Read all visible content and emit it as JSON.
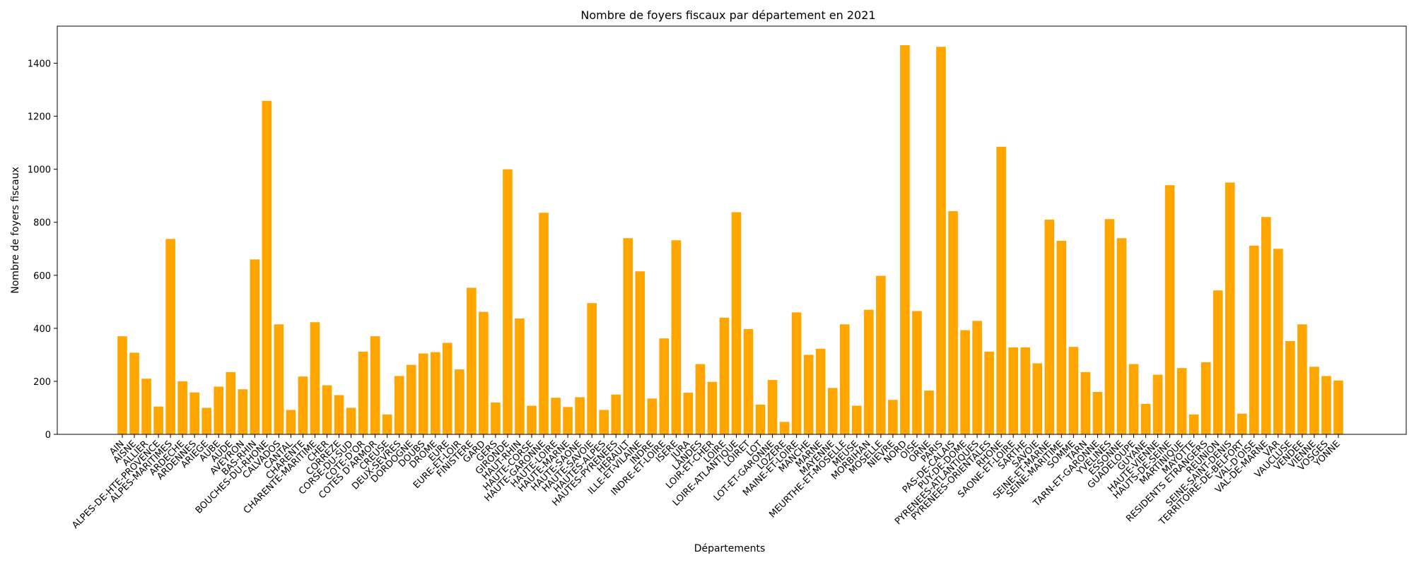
{
  "chart_data": {
    "type": "bar",
    "title": "Nombre de foyers fiscaux par département en 2021",
    "xlabel": "Départements",
    "ylabel": "Nombre de foyers fiscaux",
    "ylim": [
      0,
      1540
    ],
    "yticks": [
      0,
      200,
      400,
      600,
      800,
      1000,
      1200,
      1400
    ],
    "grid": false,
    "bar_color": "#FFA500",
    "categories": [
      "AIN",
      "AISNE",
      "ALLIER",
      "ALPES-DE-HTE-PROVENCE",
      "ALPES-MARITIMES",
      "ARDECHE",
      "ARDENNES",
      "ARIEGE",
      "AUBE",
      "AUDE",
      "AVEYRON",
      "BAS-RHIN",
      "BOUCHES-DU-RHONE",
      "CALVADOS",
      "CANTAL",
      "CHARENTE",
      "CHARENTE-MARITIME",
      "CHER",
      "CORREZE",
      "CORSE-DU-SUD",
      "COTE-D'OR",
      "COTES D'ARMOR",
      "CREUSE",
      "DEUX-SEVRES",
      "DORDOGNE",
      "DOUBS",
      "DROME",
      "EURE",
      "EURE-ET-LOIR",
      "FINISTERE",
      "GARD",
      "GERS",
      "GIRONDE",
      "HAUT-RHIN",
      "HAUTE-CORSE",
      "HAUTE-GARONNE",
      "HAUTE-LOIRE",
      "HAUTE-MARNE",
      "HAUTE-SAONE",
      "HAUTE-SAVOIE",
      "HAUTES-ALPES",
      "HAUTES-PYRENEES",
      "HERAULT",
      "ILLE-ET-VILAINE",
      "INDRE",
      "INDRE-ET-LOIRE",
      "ISERE",
      "JURA",
      "LANDES",
      "LOIR-ET-CHER",
      "LOIRE",
      "LOIRE-ATLANTIQUE",
      "LOIRET",
      "LOT",
      "LOT-ET-GARONNE",
      "LOZERE",
      "MAINE-ET-LOIRE",
      "MANCHE",
      "MARNE",
      "MAYENNE",
      "MEURTHE-ET-MOSELLE",
      "MEUSE",
      "MORBIHAN",
      "MOSELLE",
      "NIEVRE",
      "NORD",
      "OISE",
      "ORNE",
      "PARIS",
      "PAS-DE-CALAIS",
      "PUY-DE-DOME",
      "PYRENEES-ATLANTIQUES",
      "PYRENEES-ORIENTALES",
      "RHONE",
      "SAONE-ET-LOIRE",
      "SARTHE",
      "SAVOIE",
      "SEINE-ET-MARNE",
      "SEINE-MARITIME",
      "SOMME",
      "TARN",
      "TARN-ET-GARONNE",
      "YVELINES",
      "ESSONNE",
      "GUADELOUPE",
      "GUYANE",
      "HAUTE-VIENNE",
      "HAUTS-DE-SEINE",
      "MARTINIQUE",
      "MAYOTTE",
      "RESIDENTS ETRANGERS",
      "REUNION",
      "SEINE-SAINT-DENIS",
      "TERRITOIRE-DE-BELFORT",
      "VAL-D'OISE",
      "VAL-DE-MARNE",
      "VAR",
      "VAUCLUSE",
      "VENDEE",
      "VIENNE",
      "VOSGES",
      "YONNE"
    ],
    "values": [
      370,
      308,
      210,
      105,
      737,
      200,
      158,
      100,
      180,
      235,
      170,
      660,
      1258,
      415,
      92,
      218,
      423,
      185,
      148,
      100,
      312,
      370,
      75,
      220,
      262,
      305,
      310,
      345,
      245,
      553,
      462,
      120,
      1000,
      437,
      108,
      836,
      138,
      103,
      140,
      495,
      92,
      150,
      740,
      615,
      135,
      362,
      732,
      157,
      265,
      198,
      440,
      838,
      397,
      112,
      205,
      47,
      460,
      300,
      323,
      175,
      415,
      108,
      470,
      598,
      130,
      1468,
      465,
      165,
      1462,
      842,
      393,
      428,
      312,
      1085,
      328,
      328,
      268,
      810,
      730,
      330,
      235,
      160,
      812,
      740,
      265,
      115,
      225,
      940,
      250,
      75,
      272,
      543,
      950,
      78,
      712,
      820,
      700,
      352,
      415,
      255,
      220,
      203
    ]
  }
}
